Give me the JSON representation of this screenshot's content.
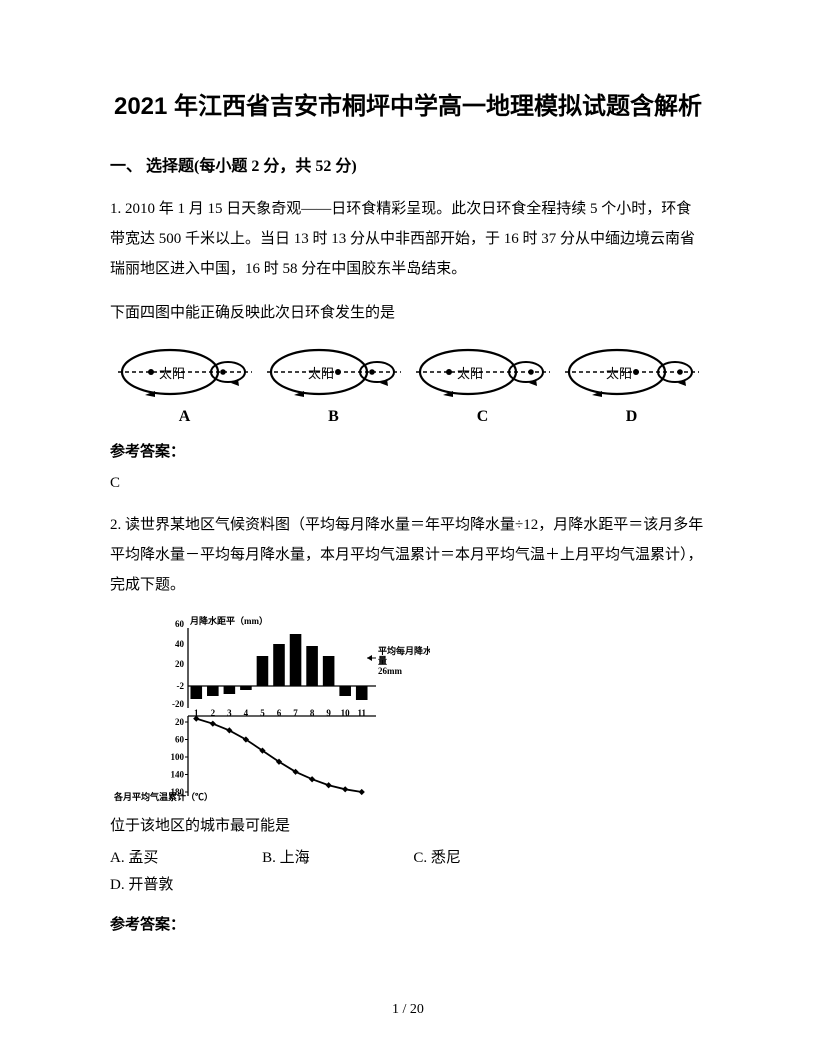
{
  "title": "2021 年江西省吉安市桐坪中学高一地理模拟试题含解析",
  "section": "一、 选择题(每小题 2 分，共 52 分)",
  "q1": {
    "text": "1. 2010 年 1 月 15 日天象奇观——日环食精彩呈现。此次日环食全程持续 5 个小时，环食带宽达 500 千米以上。当日 13 时 13 分从中非西部开始，于 16 时 37 分从中缅边境云南省瑞丽地区进入中国，16 时 58 分在中国胶东半岛结束。",
    "prompt": "下面四图中能正确反映此次日环食发生的是",
    "options": [
      "A",
      "B",
      "C",
      "D"
    ],
    "sun_label": "太阳",
    "ref_label": "参考答案：",
    "answer": "C"
  },
  "q2": {
    "text": "2. 读世界某地区气候资料图（平均每月降水量＝年平均降水量÷12，月降水距平＝该月多年平均降水量－平均每月降水量，本月平均气温累计＝本月平均气温＋上月平均气温累计），完成下题。",
    "chart": {
      "type": "bar+line",
      "bar_title": "月降水距平（mm）",
      "avg_label": "平均每月降水量26mm",
      "line_label": "各月平均气温累计（℃）",
      "x_ticks": [
        1,
        2,
        3,
        4,
        5,
        6,
        7,
        8,
        9,
        10,
        11
      ],
      "bar_values": [
        -15,
        -12,
        -10,
        -6,
        28,
        40,
        50,
        38,
        28,
        -12,
        -16
      ],
      "bar_yticks": [
        -20,
        -2,
        20,
        40,
        60
      ],
      "line_yticks": [
        20,
        60,
        100,
        140,
        180
      ],
      "line_values": [
        10,
        25,
        45,
        72,
        105,
        138,
        168,
        190,
        208,
        220,
        228
      ],
      "colors": {
        "bar": "#000000",
        "line": "#000000",
        "axis": "#000000",
        "bg": "#ffffff"
      },
      "fontsize": 9
    },
    "prompt": "位于该地区的城市最可能是",
    "options": {
      "A": "孟买",
      "B": "上海",
      "C": "悉尼",
      "D": "开普敦"
    },
    "ref_label": "参考答案："
  },
  "footer": "1 / 20"
}
